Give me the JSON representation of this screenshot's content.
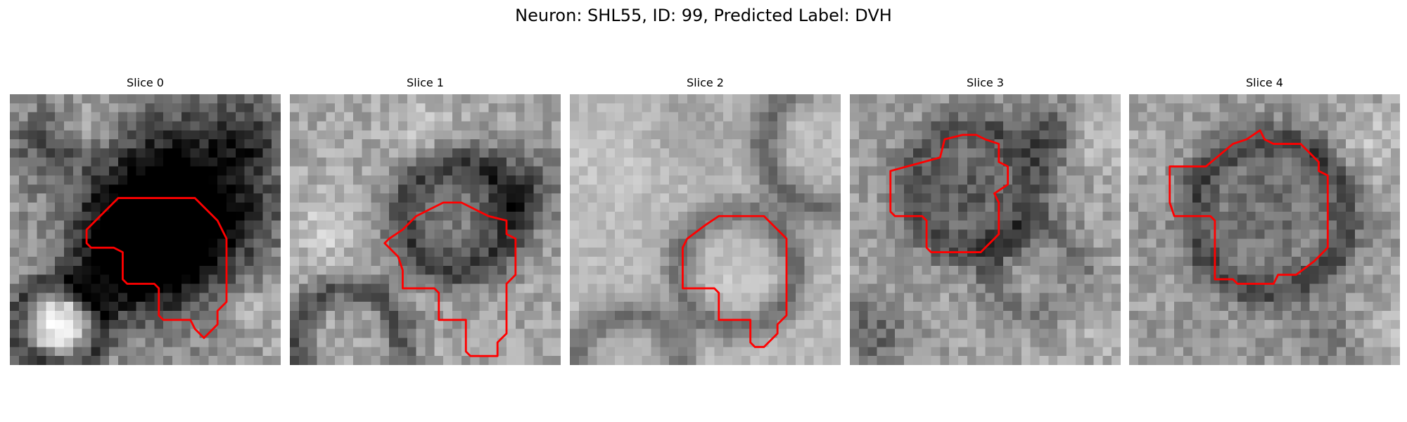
{
  "figure": {
    "title": "Neuron: SHL55, ID: 99, Predicted Label: DVH"
  },
  "panels": [
    {
      "title": "Slice 0"
    },
    {
      "title": "Slice 1"
    },
    {
      "title": "Slice 2"
    },
    {
      "title": "Slice 3"
    },
    {
      "title": "Slice 4"
    }
  ],
  "colors": {
    "contour": "#ff0000"
  }
}
